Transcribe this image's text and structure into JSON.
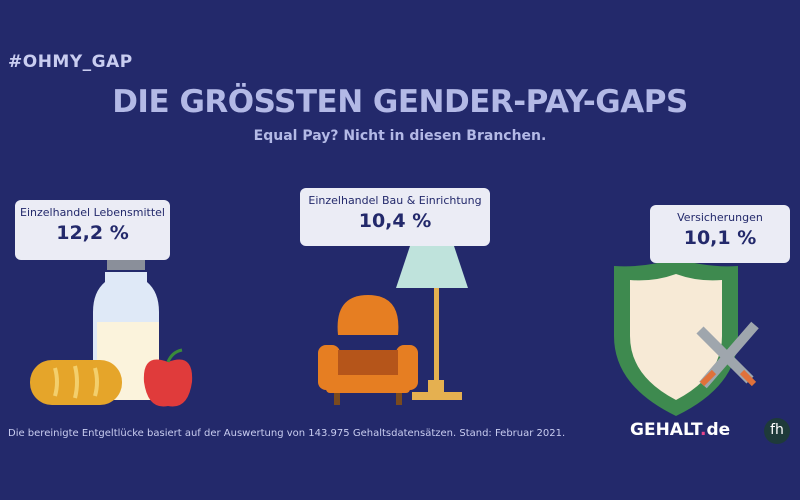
{
  "hashtag": "#OHMY_GAP",
  "title": "DIE GRÖSSTEN GENDER-PAY-GAPS",
  "subtitle": "Equal Pay? Nicht in diesen Branchen.",
  "branches": [
    {
      "label": "Einzelhandel Lebensmittel",
      "value": "12,2 %",
      "icon": "groceries-icon"
    },
    {
      "label": "Einzelhandel Bau & Einrichtung",
      "value": "10,4 %",
      "icon": "furniture-lamp-icon"
    },
    {
      "label": "Versicherungen",
      "value": "10,1 %",
      "icon": "shield-swords-icon"
    }
  ],
  "footnote": "Die bereinigte Entgeltlücke basiert auf der Auswertung von 143.975 Gehaltsdatensätzen. Stand: Februar 2021.",
  "logo": {
    "main": "GEHALT",
    "dot": ".",
    "suffix": "de"
  },
  "fh_logo": "fh",
  "colors": {
    "background": "#23296b",
    "title": "#b3b9e6",
    "card": "#ebecf5",
    "logo_dot": "#e8448a"
  }
}
